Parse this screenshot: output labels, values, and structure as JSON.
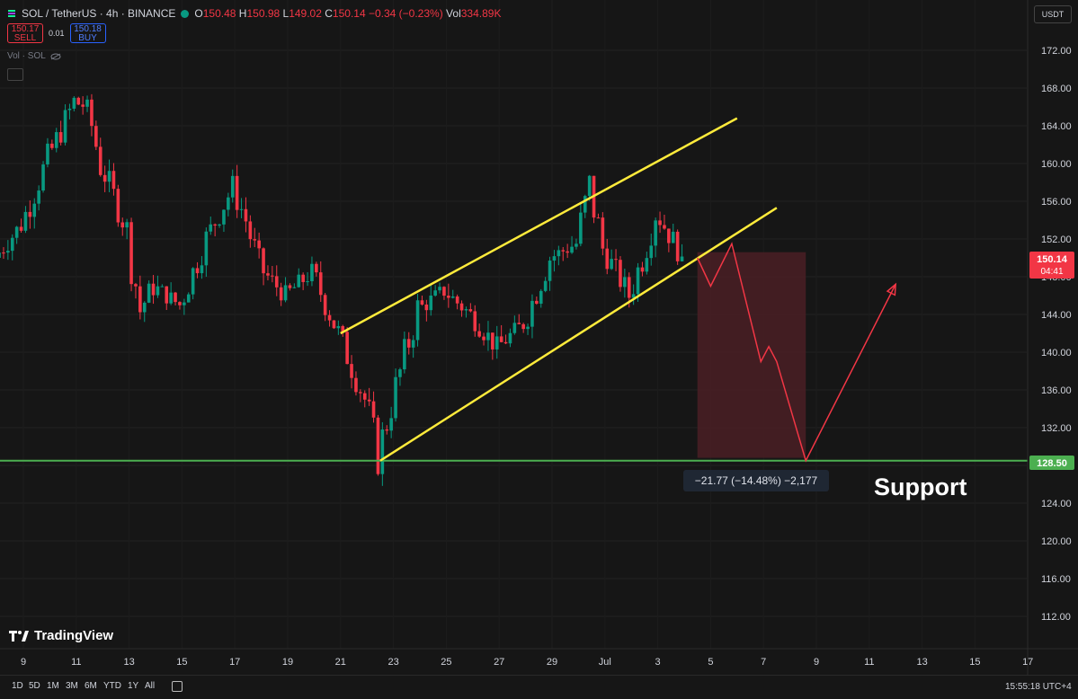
{
  "header": {
    "symbol": "SOL / TetherUS · 4h · BINANCE",
    "open_label": "O",
    "open": "150.48",
    "high_label": "H",
    "high": "150.98",
    "low_label": "L",
    "low": "149.02",
    "close_label": "C",
    "close": "150.14",
    "change": "−0.34 (−0.23%)",
    "vol_label": "Vol",
    "vol": "334.89K"
  },
  "trade": {
    "sell_price": "150.17",
    "sell_label": "SELL",
    "spread": "0.01",
    "buy_price": "150.18",
    "buy_label": "BUY"
  },
  "volume_indicator": "Vol · SOL",
  "currency": "USDT",
  "brand": "TradingView",
  "timeframes": [
    "1D",
    "5D",
    "1M",
    "3M",
    "6M",
    "YTD",
    "1Y",
    "All"
  ],
  "clock": "15:55:18 UTC+4",
  "colors": {
    "up": "#089981",
    "down": "#f23645",
    "channel": "#ffeb3b",
    "support": "#4caf50",
    "projection": "#f23645",
    "zone": "#4a1f24"
  },
  "chart_data": {
    "type": "candlestick",
    "y_ticks": [
      172,
      168,
      164,
      160,
      156,
      152,
      148,
      144,
      140,
      136,
      132,
      128,
      124,
      120,
      116,
      112
    ],
    "x_ticks": [
      "9",
      "11",
      "13",
      "15",
      "17",
      "19",
      "21",
      "23",
      "25",
      "27",
      "29",
      "Jul",
      "3",
      "5",
      "7",
      "9",
      "11",
      "13",
      "15",
      "17"
    ],
    "x_tick_dates": [
      "Jun 9",
      "Jun 11",
      "Jun 13",
      "Jun 15",
      "Jun 17",
      "Jun 19",
      "Jun 21",
      "Jun 23",
      "Jun 25",
      "Jun 27",
      "Jun 29",
      "Jul 1",
      "Jul 3",
      "Jul 5",
      "Jul 7",
      "Jul 9",
      "Jul 11",
      "Jul 13",
      "Jul 15",
      "Jul 17"
    ],
    "last_price": "150.14",
    "countdown": "04:41",
    "support_price": "128.50",
    "support_label": "Support",
    "measure_label": "−21.77 (−14.48%) −2,177",
    "closes": [
      {
        "date": "Jun 8",
        "close": 150.0
      },
      {
        "date": "Jun 9",
        "close": 153.5
      },
      {
        "date": "Jun 10",
        "close": 160.5
      },
      {
        "date": "Jun 11",
        "close": 166.5
      },
      {
        "date": "Jun 11.5",
        "close": 166.0
      },
      {
        "date": "Jun 12",
        "close": 160.0
      },
      {
        "date": "Jun 13",
        "close": 153.0
      },
      {
        "date": "Jun 13.5",
        "close": 144.5
      },
      {
        "date": "Jun 14",
        "close": 147.0
      },
      {
        "date": "Jun 15",
        "close": 145.0
      },
      {
        "date": "Jun 16",
        "close": 152.0
      },
      {
        "date": "Jun 17",
        "close": 157.5
      },
      {
        "date": "Jun 17.5",
        "close": 154.0
      },
      {
        "date": "Jun 18",
        "close": 149.0
      },
      {
        "date": "Jun 19",
        "close": 146.0
      },
      {
        "date": "Jun 20",
        "close": 148.5
      },
      {
        "date": "Jun 21",
        "close": 142.0
      },
      {
        "date": "Jun 22",
        "close": 135.0
      },
      {
        "date": "Jun 22.5",
        "close": 129.0
      },
      {
        "date": "Jun 23",
        "close": 134.5
      },
      {
        "date": "Jun 24",
        "close": 144.5
      },
      {
        "date": "Jun 25",
        "close": 146.5
      },
      {
        "date": "Jun 26",
        "close": 144.0
      },
      {
        "date": "Jun 27",
        "close": 140.5
      },
      {
        "date": "Jun 28",
        "close": 143.0
      },
      {
        "date": "Jun 29",
        "close": 150.0
      },
      {
        "date": "Jun 30",
        "close": 151.5
      },
      {
        "date": "Jun 30.5",
        "close": 157.5
      },
      {
        "date": "Jul 1",
        "close": 151.0
      },
      {
        "date": "Jul 2",
        "close": 146.0
      },
      {
        "date": "Jul 2.5",
        "close": 150.0
      },
      {
        "date": "Jul 3",
        "close": 155.0
      },
      {
        "date": "Jul 4",
        "close": 150.14
      }
    ],
    "channel_upper": [
      {
        "date": "Jun 21",
        "price": 142.0
      },
      {
        "date": "Jul 6",
        "price": 164.8
      }
    ],
    "channel_lower": [
      {
        "date": "Jun 22.5",
        "price": 128.5
      },
      {
        "date": "Jul 7.5",
        "price": 155.3
      }
    ],
    "projection": [
      {
        "date": "Jul 4.5",
        "price": 150.0
      },
      {
        "date": "Jul 5.0",
        "price": 147.0
      },
      {
        "date": "Jul 5.8",
        "price": 151.5
      },
      {
        "date": "Jul 6.9",
        "price": 139.0
      },
      {
        "date": "Jul 7.2",
        "price": 140.6
      },
      {
        "date": "Jul 7.5",
        "price": 139.0
      },
      {
        "date": "Jul 8.6",
        "price": 128.5
      },
      {
        "date": "Jul 12",
        "price": 147.2
      }
    ],
    "range_box": {
      "date_from": "Jul 4.5",
      "date_to": "Jul 8.6",
      "price_top": 150.6,
      "price_bottom": 128.8
    }
  }
}
